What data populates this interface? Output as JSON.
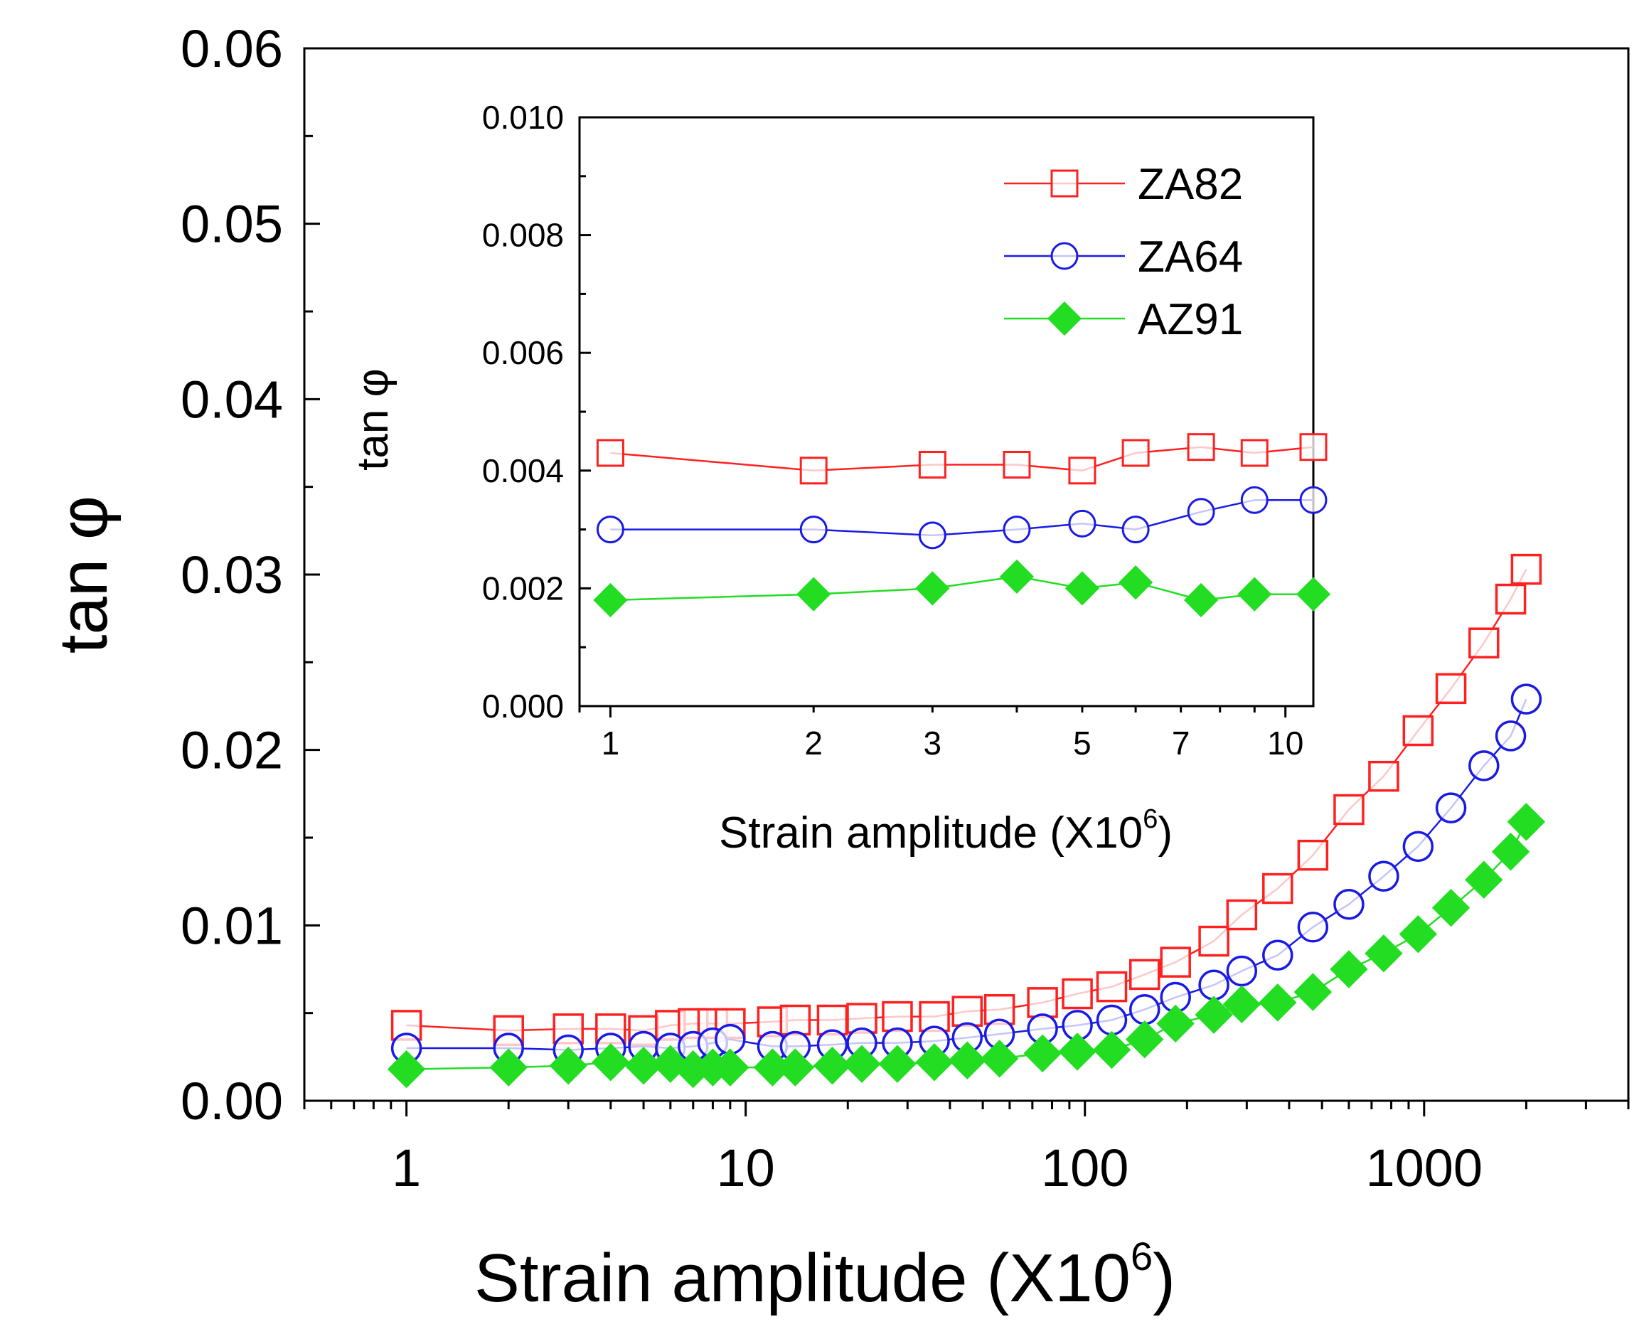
{
  "chart_data": [
    {
      "type": "scatter",
      "name": "main",
      "xscale": "log",
      "xlim": [
        0.5,
        4000
      ],
      "ylim": [
        0,
        0.06
      ],
      "xticks": [
        1,
        10,
        100,
        1000
      ],
      "xtick_labels": [
        "1",
        "10",
        "100",
        "1000"
      ],
      "yticks": [
        0,
        0.01,
        0.02,
        0.03,
        0.04,
        0.05,
        0.06
      ],
      "ytick_labels": [
        "0.00",
        "0.01",
        "0.02",
        "0.03",
        "0.04",
        "0.05",
        "0.06"
      ],
      "xlabel": "Strain amplitude (X10",
      "xlabel_sup": "6",
      "xlabel_end": ")",
      "ylabel": "tan φ",
      "series": [
        {
          "name": "ZA82",
          "color": "#ff2020",
          "marker": "square-open",
          "x": [
            1,
            2,
            3,
            4,
            5,
            6,
            7,
            8,
            9,
            12,
            14,
            18,
            22,
            28,
            36,
            45,
            56,
            75,
            95,
            120,
            150,
            185,
            240,
            290,
            370,
            470,
            600,
            760,
            960,
            1200,
            1500,
            1800,
            2000
          ],
          "y": [
            0.0043,
            0.004,
            0.0041,
            0.0041,
            0.004,
            0.0043,
            0.0044,
            0.0044,
            0.0044,
            0.0045,
            0.0046,
            0.0046,
            0.0047,
            0.0048,
            0.0048,
            0.0051,
            0.0052,
            0.0056,
            0.0061,
            0.0065,
            0.0072,
            0.0079,
            0.0091,
            0.0106,
            0.0121,
            0.014,
            0.0166,
            0.0185,
            0.0211,
            0.0235,
            0.0261,
            0.0286,
            0.0303
          ]
        },
        {
          "name": "ZA64",
          "color": "#1a1ae6",
          "marker": "circle-open",
          "x": [
            1,
            2,
            3,
            4,
            5,
            6,
            7,
            8,
            9,
            12,
            14,
            18,
            22,
            28,
            36,
            45,
            56,
            75,
            95,
            120,
            150,
            185,
            240,
            290,
            370,
            470,
            600,
            760,
            960,
            1200,
            1500,
            1800,
            2000
          ],
          "y": [
            0.003,
            0.003,
            0.0029,
            0.003,
            0.0031,
            0.003,
            0.0031,
            0.0033,
            0.0035,
            0.0031,
            0.0031,
            0.0032,
            0.0033,
            0.0033,
            0.0034,
            0.0036,
            0.0038,
            0.0041,
            0.0043,
            0.0046,
            0.0052,
            0.0059,
            0.0066,
            0.0074,
            0.0083,
            0.0099,
            0.0112,
            0.0128,
            0.0145,
            0.0167,
            0.0191,
            0.0208,
            0.0229
          ]
        },
        {
          "name": "AZ91",
          "color": "#22dd22",
          "marker": "diamond-filled",
          "x": [
            1,
            2,
            3,
            4,
            5,
            6,
            7,
            8,
            9,
            12,
            14,
            18,
            22,
            28,
            36,
            45,
            56,
            75,
            95,
            120,
            150,
            185,
            240,
            290,
            370,
            470,
            600,
            760,
            960,
            1200,
            1500,
            1800,
            2000
          ],
          "y": [
            0.0018,
            0.0019,
            0.002,
            0.0022,
            0.002,
            0.0021,
            0.0018,
            0.0019,
            0.0019,
            0.0019,
            0.0019,
            0.002,
            0.0021,
            0.0021,
            0.0022,
            0.0023,
            0.0024,
            0.0027,
            0.0028,
            0.0029,
            0.0035,
            0.0044,
            0.0049,
            0.0055,
            0.0056,
            0.0062,
            0.0075,
            0.0084,
            0.0095,
            0.011,
            0.0126,
            0.0142,
            0.0159
          ]
        }
      ]
    },
    {
      "type": "scatter",
      "name": "inset",
      "xscale": "log",
      "xlim": [
        0.9,
        11
      ],
      "ylim": [
        0,
        0.01
      ],
      "xticks": [
        1,
        2,
        3,
        5,
        7,
        10
      ],
      "xtick_labels": [
        "1",
        "2",
        "3",
        "5",
        "7",
        "10"
      ],
      "yticks": [
        0,
        0.002,
        0.004,
        0.006,
        0.008,
        0.01
      ],
      "ytick_labels": [
        "0.000",
        "0.002",
        "0.004",
        "0.006",
        "0.008",
        "0.010"
      ],
      "xlabel": "Strain amplitude (X10",
      "xlabel_sup": "6",
      "xlabel_end": ")",
      "ylabel": "tan φ",
      "legend_position": "top-right",
      "series": [
        {
          "name": "ZA82",
          "color": "#ff2020",
          "marker": "square-open",
          "x": [
            1,
            2,
            3,
            4,
            5,
            6,
            7.5,
            9,
            11
          ],
          "y": [
            0.0043,
            0.004,
            0.0041,
            0.0041,
            0.004,
            0.0043,
            0.0044,
            0.0043,
            0.0044
          ]
        },
        {
          "name": "ZA64",
          "color": "#1a1ae6",
          "marker": "circle-open",
          "x": [
            1,
            2,
            3,
            4,
            5,
            6,
            7.5,
            9,
            11
          ],
          "y": [
            0.003,
            0.003,
            0.0029,
            0.003,
            0.0031,
            0.003,
            0.0033,
            0.0035,
            0.0035
          ]
        },
        {
          "name": "AZ91",
          "color": "#22dd22",
          "marker": "diamond-filled",
          "x": [
            1,
            2,
            3,
            4,
            5,
            6,
            7.5,
            9,
            11
          ],
          "y": [
            0.0018,
            0.0019,
            0.002,
            0.0022,
            0.002,
            0.0021,
            0.0018,
            0.0019,
            0.0019
          ]
        }
      ]
    }
  ]
}
